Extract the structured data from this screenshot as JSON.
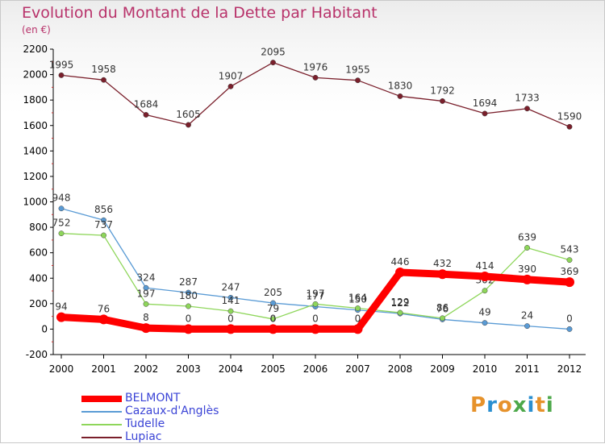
{
  "header": {
    "title": "Evolution du Montant de la Dette par Habitant",
    "unit": "(en €)"
  },
  "brand": {
    "text": "Proxiti",
    "colors": [
      "#e6922b",
      "#2a8fd0",
      "#e6922b",
      "#4da84a",
      "#2a8fd0",
      "#e6922b",
      "#4da84a"
    ]
  },
  "chart_data": {
    "type": "line",
    "x": [
      "2000",
      "2001",
      "2002",
      "2003",
      "2004",
      "2005",
      "2006",
      "2007",
      "2008",
      "2009",
      "2010",
      "2011",
      "2012"
    ],
    "ylim": [
      -200,
      2200
    ],
    "yticks": [
      -200,
      0,
      200,
      400,
      600,
      800,
      1000,
      1200,
      1400,
      1600,
      1800,
      2000,
      2200
    ],
    "grid": false,
    "legend_position": "bottom-left",
    "series": [
      {
        "name": "Lupiac",
        "color": "#7a1f2b",
        "values": [
          1995,
          1958,
          1684,
          1605,
          1907,
          2095,
          1976,
          1955,
          1830,
          1792,
          1694,
          1733,
          1590
        ],
        "labels": [
          "1995",
          "1958",
          "1684",
          "1605",
          "1907",
          "2095",
          "1976",
          "1955",
          "1830",
          "1792",
          "1694",
          "1733",
          "1590"
        ]
      },
      {
        "name": "Cazaux-d'Anglès",
        "color": "#5a9bd5",
        "values": [
          948,
          856,
          324,
          287,
          247,
          205,
          177,
          150,
          122,
          76,
          49,
          24,
          0
        ],
        "labels": [
          "948",
          "856",
          "324",
          "287",
          "247",
          "205",
          "177",
          "150",
          "122",
          "76",
          "49",
          "24",
          "0"
        ]
      },
      {
        "name": "Tudelle",
        "color": "#8ed65a",
        "values": [
          752,
          737,
          197,
          180,
          141,
          79,
          197,
          164,
          129,
          86,
          302,
          639,
          543
        ],
        "labels": [
          "752",
          "737",
          "197",
          "180",
          "141",
          "79",
          "197",
          "164",
          "129",
          "86",
          "302",
          "639",
          "543"
        ]
      },
      {
        "name": "BELMONT",
        "color": "#ff0000",
        "values": [
          94,
          76,
          8,
          0,
          0,
          0,
          0,
          0,
          446,
          432,
          414,
          390,
          369
        ],
        "labels": [
          "94",
          "76",
          "8",
          "0",
          "0",
          "0",
          "0",
          "0",
          "446",
          "432",
          "414",
          "390",
          "369"
        ]
      }
    ]
  },
  "legend": [
    {
      "label": "BELMONT",
      "color": "#ff0000"
    },
    {
      "label": "Cazaux-d'Anglès",
      "color": "#5a9bd5"
    },
    {
      "label": "Tudelle",
      "color": "#8ed65a"
    },
    {
      "label": "Lupiac",
      "color": "#7a1f2b"
    }
  ]
}
